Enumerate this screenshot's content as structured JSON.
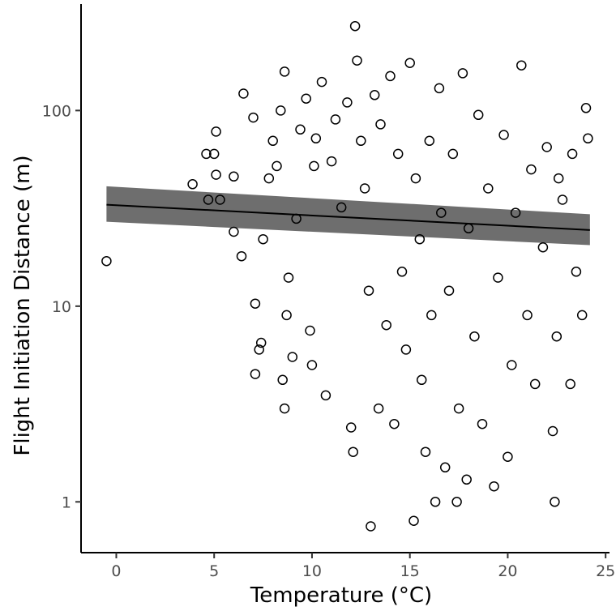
{
  "chart_data": {
    "type": "scatter",
    "xlabel": "Temperature (°C)",
    "ylabel": "Flight Initiation Distance (m)",
    "xlim": [
      -1.8,
      25.2
    ],
    "ylim": [
      0.55,
      350
    ],
    "y_scale": "log",
    "grid": false,
    "x_ticks": [
      {
        "value": 0,
        "label": "0"
      },
      {
        "value": 5,
        "label": "5"
      },
      {
        "value": 10,
        "label": "10"
      },
      {
        "value": 15,
        "label": "15"
      },
      {
        "value": 20,
        "label": "20"
      },
      {
        "value": 25,
        "label": "25"
      }
    ],
    "y_ticks": [
      {
        "value": 1,
        "label": "1"
      },
      {
        "value": 10,
        "label": "10"
      },
      {
        "value": 100,
        "label": "100"
      }
    ],
    "fit_line": {
      "x": [
        -0.5,
        24.2
      ],
      "y": [
        33.0,
        24.5
      ],
      "ci_lower": [
        27.0,
        20.5
      ],
      "ci_upper": [
        41.0,
        29.5
      ],
      "band_color": "#555555",
      "line_color": "#000000"
    },
    "series": [
      {
        "marker": "open-circle",
        "color": "#000000",
        "points": [
          [
            -0.5,
            17
          ],
          [
            3.9,
            42
          ],
          [
            4.6,
            60
          ],
          [
            4.7,
            35
          ],
          [
            5.0,
            60
          ],
          [
            5.1,
            78
          ],
          [
            5.1,
            47
          ],
          [
            5.3,
            35
          ],
          [
            6.0,
            46
          ],
          [
            6.0,
            24
          ],
          [
            6.4,
            18
          ],
          [
            6.5,
            122
          ],
          [
            7.0,
            92
          ],
          [
            7.1,
            10.3
          ],
          [
            7.1,
            4.5
          ],
          [
            7.3,
            6.0
          ],
          [
            7.4,
            6.5
          ],
          [
            7.5,
            22
          ],
          [
            7.8,
            45
          ],
          [
            8.0,
            70
          ],
          [
            8.2,
            52
          ],
          [
            8.4,
            100
          ],
          [
            8.5,
            4.2
          ],
          [
            8.6,
            3.0
          ],
          [
            8.6,
            158
          ],
          [
            8.7,
            9
          ],
          [
            8.8,
            14
          ],
          [
            9.0,
            5.5
          ],
          [
            9.2,
            28
          ],
          [
            9.4,
            80
          ],
          [
            9.7,
            115
          ],
          [
            9.9,
            7.5
          ],
          [
            10.0,
            5.0
          ],
          [
            10.1,
            52
          ],
          [
            10.2,
            72
          ],
          [
            10.5,
            140
          ],
          [
            10.7,
            3.5
          ],
          [
            11.0,
            55
          ],
          [
            11.2,
            90
          ],
          [
            11.5,
            32
          ],
          [
            11.8,
            110
          ],
          [
            12.0,
            2.4
          ],
          [
            12.1,
            1.8
          ],
          [
            12.2,
            270
          ],
          [
            12.3,
            180
          ],
          [
            12.5,
            70
          ],
          [
            12.7,
            40
          ],
          [
            12.9,
            12
          ],
          [
            13.0,
            0.75
          ],
          [
            13.2,
            120
          ],
          [
            13.4,
            3.0
          ],
          [
            13.5,
            85
          ],
          [
            13.8,
            8
          ],
          [
            14.0,
            150
          ],
          [
            14.2,
            2.5
          ],
          [
            14.4,
            60
          ],
          [
            14.6,
            15
          ],
          [
            14.8,
            6
          ],
          [
            15.0,
            175
          ],
          [
            15.2,
            0.8
          ],
          [
            15.3,
            45
          ],
          [
            15.5,
            22
          ],
          [
            15.6,
            4.2
          ],
          [
            15.8,
            1.8
          ],
          [
            16.0,
            70
          ],
          [
            16.1,
            9
          ],
          [
            16.3,
            1.0
          ],
          [
            16.5,
            130
          ],
          [
            16.6,
            30
          ],
          [
            16.8,
            1.5
          ],
          [
            17.0,
            12
          ],
          [
            17.2,
            60
          ],
          [
            17.4,
            1.0
          ],
          [
            17.5,
            3.0
          ],
          [
            17.7,
            155
          ],
          [
            17.9,
            1.3
          ],
          [
            18.0,
            25
          ],
          [
            18.3,
            7
          ],
          [
            18.5,
            95
          ],
          [
            18.7,
            2.5
          ],
          [
            19.0,
            40
          ],
          [
            19.3,
            1.2
          ],
          [
            19.5,
            14
          ],
          [
            19.8,
            75
          ],
          [
            20.0,
            1.7
          ],
          [
            20.2,
            5
          ],
          [
            20.4,
            30
          ],
          [
            20.7,
            170
          ],
          [
            21.0,
            9
          ],
          [
            21.2,
            50
          ],
          [
            21.4,
            4
          ],
          [
            21.8,
            20
          ],
          [
            22.0,
            65
          ],
          [
            22.3,
            2.3
          ],
          [
            22.4,
            1.0
          ],
          [
            22.5,
            7
          ],
          [
            22.8,
            35
          ],
          [
            23.2,
            4
          ],
          [
            23.5,
            15
          ],
          [
            23.8,
            9
          ],
          [
            24.0,
            103
          ],
          [
            24.1,
            72
          ],
          [
            23.3,
            60
          ],
          [
            22.6,
            45
          ]
        ]
      }
    ]
  }
}
